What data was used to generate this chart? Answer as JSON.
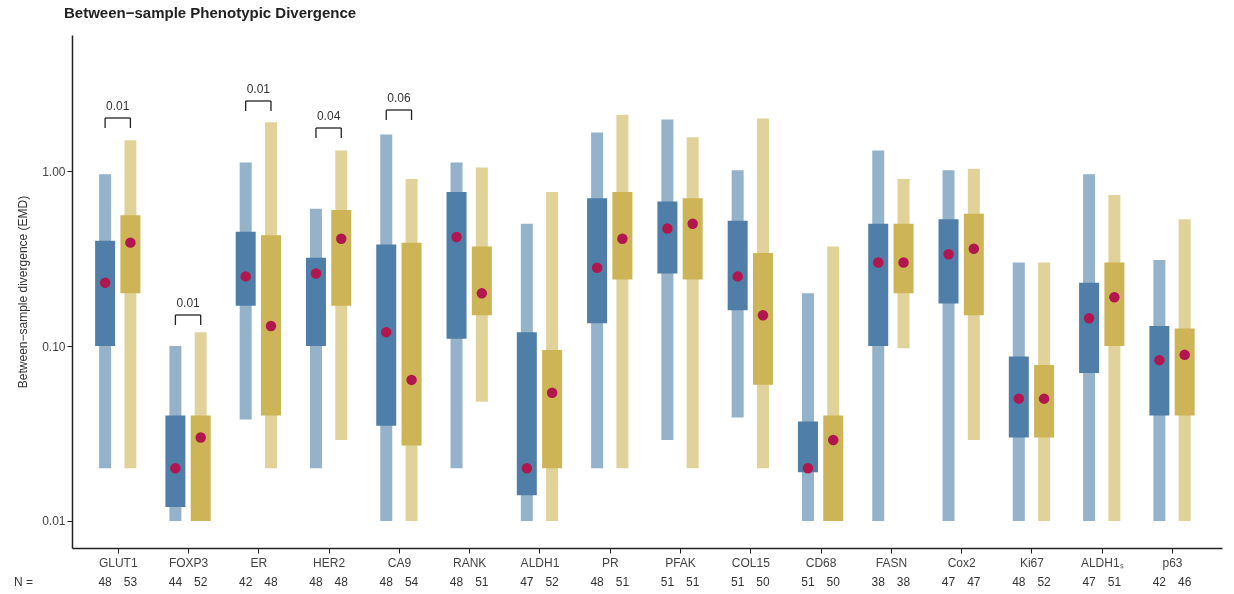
{
  "chart_data": {
    "type": "box",
    "title": "Between−sample Phenotypic Divergence",
    "ylabel": "Between−sample divergence (EMD)",
    "log": true,
    "ylim": [
      0.007,
      6
    ],
    "yticks": [
      0.01,
      {
        "value": 0.1,
        "label": "0.10"
      },
      {
        "value": 1,
        "label": "1.00"
      }
    ],
    "categories": [
      "GLUT1",
      "FOXP3",
      "ER",
      "HER2",
      "CA9",
      "RANK",
      "ALDH1",
      "PR",
      "PFAK",
      "COL15",
      "CD68",
      "FASN",
      "Cox2",
      "Ki67",
      "ALDH1ₛ",
      "p63"
    ],
    "series": [
      {
        "color": "#4f7fa8",
        "boxes": [
          {
            "low": 0.02,
            "q1": 0.1,
            "median": 0.23,
            "q3": 0.4,
            "high": 0.96
          },
          {
            "low": 0.01,
            "q1": 0.012,
            "median": 0.02,
            "q3": 0.04,
            "high": 0.1
          },
          {
            "low": 0.038,
            "q1": 0.17,
            "median": 0.25,
            "q3": 0.45,
            "high": 1.12
          },
          {
            "low": 0.02,
            "q1": 0.1,
            "median": 0.26,
            "q3": 0.32,
            "high": 0.61
          },
          {
            "low": 0.01,
            "q1": 0.035,
            "median": 0.12,
            "q3": 0.38,
            "high": 1.62
          },
          {
            "low": 0.02,
            "q1": 0.11,
            "median": 0.42,
            "q3": 0.76,
            "high": 1.12
          },
          {
            "low": 0.01,
            "q1": 0.014,
            "median": 0.02,
            "q3": 0.12,
            "high": 0.5
          },
          {
            "low": 0.02,
            "q1": 0.135,
            "median": 0.28,
            "q3": 0.7,
            "high": 1.66
          },
          {
            "low": 0.029,
            "q1": 0.26,
            "median": 0.47,
            "q3": 0.67,
            "high": 1.97
          },
          {
            "low": 0.039,
            "q1": 0.16,
            "median": 0.25,
            "q3": 0.52,
            "high": 1.01
          },
          {
            "low": 0.01,
            "q1": 0.019,
            "median": 0.02,
            "q3": 0.037,
            "high": 0.2
          },
          {
            "low": 0.01,
            "q1": 0.1,
            "median": 0.3,
            "q3": 0.5,
            "high": 1.31
          },
          {
            "low": 0.01,
            "q1": 0.175,
            "median": 0.335,
            "q3": 0.53,
            "high": 1.01
          },
          {
            "low": 0.01,
            "q1": 0.03,
            "median": 0.05,
            "q3": 0.087,
            "high": 0.3
          },
          {
            "low": 0.01,
            "q1": 0.07,
            "median": 0.144,
            "q3": 0.23,
            "high": 0.96
          },
          {
            "low": 0.01,
            "q1": 0.04,
            "median": 0.083,
            "q3": 0.13,
            "high": 0.31
          }
        ]
      },
      {
        "color": "#cdb456",
        "boxes": [
          {
            "low": 0.02,
            "q1": 0.2,
            "median": 0.39,
            "q3": 0.56,
            "high": 1.5
          },
          {
            "low": 0.01,
            "q1": 0.01,
            "median": 0.03,
            "q3": 0.04,
            "high": 0.12
          },
          {
            "low": 0.02,
            "q1": 0.04,
            "median": 0.13,
            "q3": 0.43,
            "high": 1.9
          },
          {
            "low": 0.029,
            "q1": 0.17,
            "median": 0.41,
            "q3": 0.6,
            "high": 1.31
          },
          {
            "low": 0.01,
            "q1": 0.027,
            "median": 0.064,
            "q3": 0.39,
            "high": 0.9
          },
          {
            "low": 0.048,
            "q1": 0.15,
            "median": 0.2,
            "q3": 0.37,
            "high": 1.05
          },
          {
            "low": 0.01,
            "q1": 0.02,
            "median": 0.054,
            "q3": 0.095,
            "high": 0.76
          },
          {
            "low": 0.02,
            "q1": 0.24,
            "median": 0.41,
            "q3": 0.76,
            "high": 2.1
          },
          {
            "low": 0.02,
            "q1": 0.24,
            "median": 0.5,
            "q3": 0.7,
            "high": 1.56
          },
          {
            "low": 0.02,
            "q1": 0.06,
            "median": 0.15,
            "q3": 0.34,
            "high": 2.0
          },
          {
            "low": 0.01,
            "q1": 0.01,
            "median": 0.029,
            "q3": 0.04,
            "high": 0.37
          },
          {
            "low": 0.097,
            "q1": 0.2,
            "median": 0.3,
            "q3": 0.5,
            "high": 0.9
          },
          {
            "low": 0.029,
            "q1": 0.15,
            "median": 0.36,
            "q3": 0.57,
            "high": 1.03
          },
          {
            "low": 0.01,
            "q1": 0.03,
            "median": 0.05,
            "q3": 0.078,
            "high": 0.3
          },
          {
            "low": 0.01,
            "q1": 0.1,
            "median": 0.19,
            "q3": 0.3,
            "high": 0.73
          },
          {
            "low": 0.01,
            "q1": 0.04,
            "median": 0.089,
            "q3": 0.126,
            "high": 0.53
          }
        ]
      }
    ],
    "annotations": [
      "0.01",
      "0.01",
      "0.01",
      "0.04",
      "0.06",
      "N =",
      "48",
      "53",
      "44",
      "52",
      "42",
      "48",
      "48",
      "48",
      "48",
      "54",
      "48",
      "51",
      "47",
      "52",
      "48",
      "51",
      "51",
      "51",
      "51",
      "50",
      "51",
      "50",
      "38",
      "38",
      "47",
      "47",
      "48",
      "52",
      "47",
      "51",
      "42",
      "46"
    ]
  }
}
